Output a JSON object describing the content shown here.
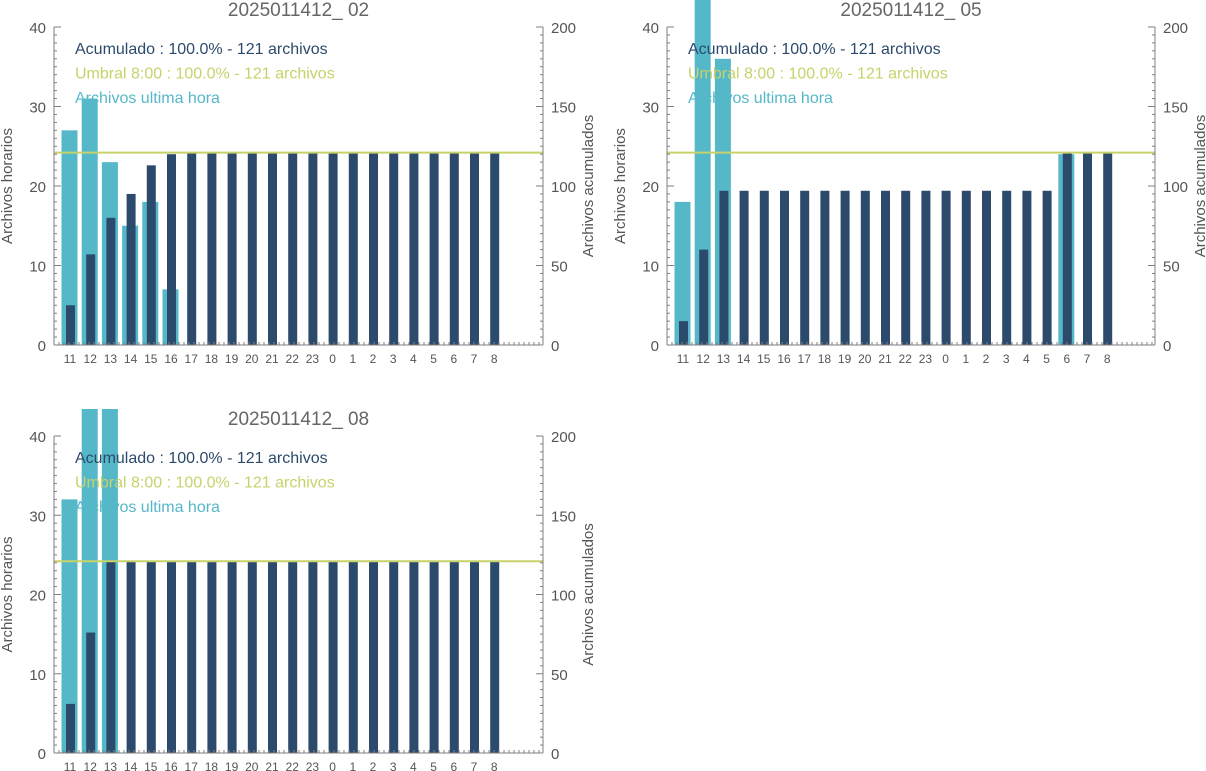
{
  "colors": {
    "hourly": "#55B8C9",
    "cumulative": "#2C4A6B",
    "threshold": "#C8D26A",
    "axis": "#7f7f7f",
    "text": "#555555",
    "title": "#666666"
  },
  "chart_data": [
    {
      "type": "bar",
      "title": "2025011412_ 02",
      "ylabel": "Archivos horarios",
      "ylabel_right": "Archivos acumulados",
      "ylim": [
        0,
        40
      ],
      "ylim_right": [
        0,
        200
      ],
      "yticks": [
        "0",
        "10",
        "20",
        "30",
        "40"
      ],
      "yticks_right": [
        "0",
        "50",
        "100",
        "150",
        "200"
      ],
      "grid": false,
      "legend_position": "top-left",
      "categories": [
        "11",
        "12",
        "13",
        "14",
        "15",
        "16",
        "17",
        "18",
        "19",
        "20",
        "21",
        "22",
        "23",
        "0",
        "1",
        "2",
        "3",
        "4",
        "5",
        "6",
        "7",
        "8"
      ],
      "legend": {
        "cumulative": "Acumulado : 100.0% - 121 archivos",
        "threshold": "Umbral 8:00 : 100.0% - 121 archivos",
        "hourly": "Archivos ultima hora"
      },
      "threshold": 121,
      "series": [
        {
          "name": "Archivos ultima hora",
          "axis": "left",
          "values": [
            27,
            31,
            23,
            15,
            18,
            7,
            0,
            0,
            0,
            0,
            0,
            0,
            0,
            0,
            0,
            0,
            0,
            0,
            0,
            0,
            0,
            0
          ]
        },
        {
          "name": "Acumulado",
          "axis": "right",
          "values": [
            25,
            57,
            80,
            95,
            113,
            120,
            121,
            121,
            121,
            121,
            121,
            121,
            121,
            121,
            121,
            121,
            121,
            121,
            121,
            121,
            121,
            121
          ]
        }
      ]
    },
    {
      "type": "bar",
      "title": "2025011412_ 05",
      "ylabel": "Archivos horarios",
      "ylabel_right": "Archivos acumulados",
      "ylim": [
        0,
        40
      ],
      "ylim_right": [
        0,
        200
      ],
      "yticks": [
        "0",
        "10",
        "20",
        "30",
        "40"
      ],
      "yticks_right": [
        "0",
        "50",
        "100",
        "150",
        "200"
      ],
      "grid": false,
      "legend_position": "top-left",
      "categories": [
        "11",
        "12",
        "13",
        "14",
        "15",
        "16",
        "17",
        "18",
        "19",
        "20",
        "21",
        "22",
        "23",
        "0",
        "1",
        "2",
        "3",
        "4",
        "5",
        "6",
        "7",
        "8"
      ],
      "legend": {
        "cumulative": "Acumulado : 100.0% - 121 archivos",
        "threshold": "Umbral 8:00 : 100.0% - 121 archivos",
        "hourly": "Archivos ultima hora"
      },
      "threshold": 121,
      "series": [
        {
          "name": "Archivos ultima hora",
          "axis": "left",
          "values": [
            18,
            44,
            36,
            0,
            0,
            0,
            0,
            0,
            0,
            0,
            0,
            0,
            0,
            0,
            0,
            0,
            0,
            0,
            0,
            24,
            0,
            0
          ]
        },
        {
          "name": "Acumulado",
          "axis": "right",
          "values": [
            15,
            60,
            97,
            97,
            97,
            97,
            97,
            97,
            97,
            97,
            97,
            97,
            97,
            97,
            97,
            97,
            97,
            97,
            97,
            121,
            121,
            121
          ]
        }
      ]
    },
    {
      "type": "bar",
      "title": "2025011412_ 08",
      "ylabel": "Archivos horarios",
      "ylabel_right": "Archivos acumulados",
      "ylim": [
        0,
        40
      ],
      "ylim_right": [
        0,
        200
      ],
      "yticks": [
        "0",
        "10",
        "20",
        "30",
        "40"
      ],
      "yticks_right": [
        "0",
        "50",
        "100",
        "150",
        "200"
      ],
      "grid": false,
      "legend_position": "top-left",
      "categories": [
        "11",
        "12",
        "13",
        "14",
        "15",
        "16",
        "17",
        "18",
        "19",
        "20",
        "21",
        "22",
        "23",
        "0",
        "1",
        "2",
        "3",
        "4",
        "5",
        "6",
        "7",
        "8"
      ],
      "legend": {
        "cumulative": "Acumulado : 100.0% - 121 archivos",
        "threshold": "Umbral 8:00 : 100.0% - 121 archivos",
        "hourly": "Archivos ultima hora"
      },
      "threshold": 121,
      "series": [
        {
          "name": "Archivos ultima hora",
          "axis": "left",
          "values": [
            32,
            44,
            45,
            0,
            0,
            0,
            0,
            0,
            0,
            0,
            0,
            0,
            0,
            0,
            0,
            0,
            0,
            0,
            0,
            0,
            0,
            0
          ]
        },
        {
          "name": "Acumulado",
          "axis": "right",
          "values": [
            31,
            76,
            121,
            121,
            121,
            121,
            121,
            121,
            121,
            121,
            121,
            121,
            121,
            121,
            121,
            121,
            121,
            121,
            121,
            121,
            121,
            121
          ]
        }
      ]
    }
  ]
}
